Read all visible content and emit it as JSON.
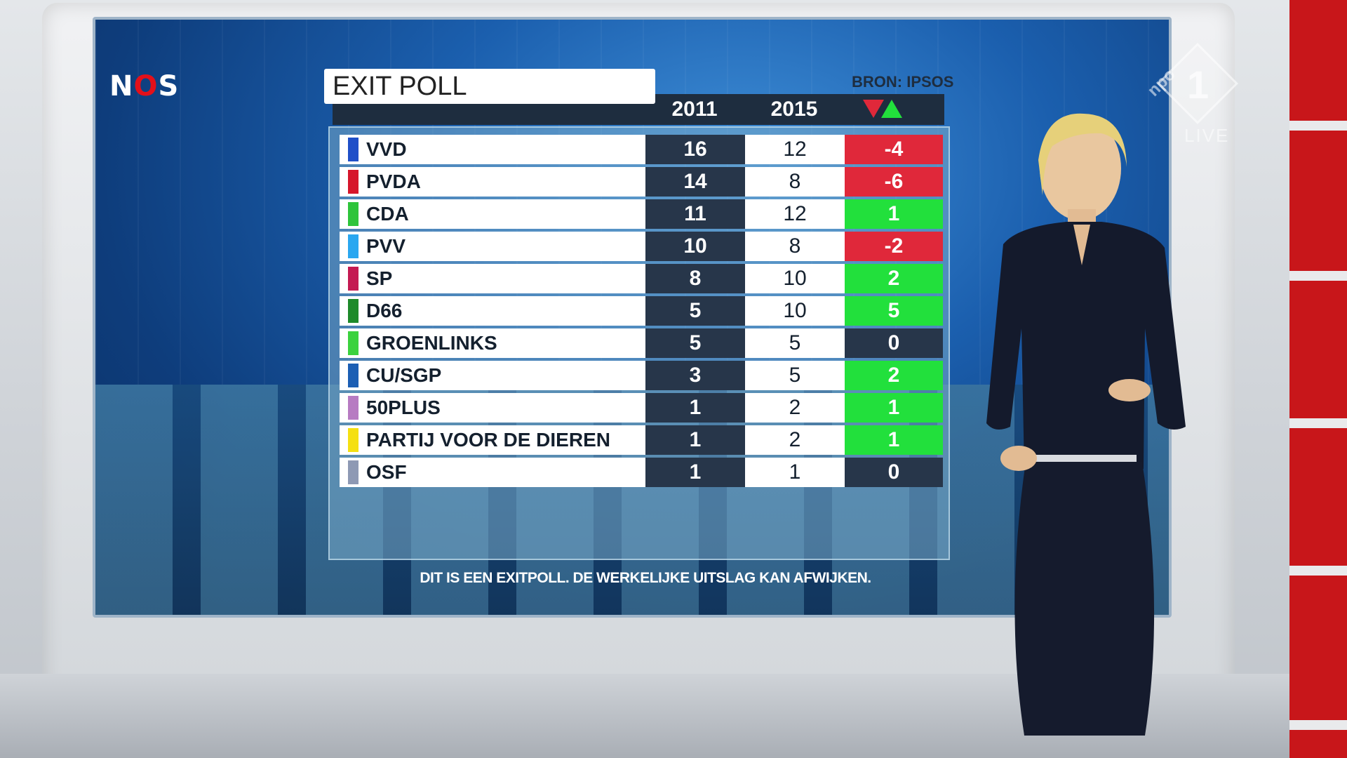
{
  "broadcaster_logo": {
    "text_n": "N",
    "text_o": "O",
    "text_s": "S"
  },
  "channel_bug": {
    "brand": "npo",
    "number": "1",
    "status": "LIVE"
  },
  "graphic": {
    "title": "EXIT POLL",
    "source": "BRON: IPSOS",
    "columns": {
      "year_prev": "2011",
      "year_new": "2015"
    },
    "disclaimer": "DIT IS EEN EXITPOLL. DE WERKELIJKE UITSLAG KAN AFWIJKEN.",
    "colors": {
      "negative": "#e0283a",
      "positive": "#22e03c",
      "neutral": "#27364a"
    }
  },
  "table": {
    "rows": [
      {
        "party": "VVD",
        "color": "#1f4fc8",
        "v2011": "16",
        "v2015": "12",
        "diff": "-4",
        "trend": "down"
      },
      {
        "party": "PVDA",
        "color": "#d6162b",
        "v2011": "14",
        "v2015": "8",
        "diff": "-6",
        "trend": "down"
      },
      {
        "party": "CDA",
        "color": "#2ec43b",
        "v2011": "11",
        "v2015": "12",
        "diff": "1",
        "trend": "up"
      },
      {
        "party": "PVV",
        "color": "#2aa7f0",
        "v2011": "10",
        "v2015": "8",
        "diff": "-2",
        "trend": "down"
      },
      {
        "party": "SP",
        "color": "#c41a52",
        "v2011": "8",
        "v2015": "10",
        "diff": "2",
        "trend": "up"
      },
      {
        "party": "D66",
        "color": "#1e8a2a",
        "v2011": "5",
        "v2015": "10",
        "diff": "5",
        "trend": "up"
      },
      {
        "party": "GROENLINKS",
        "color": "#3bd23e",
        "v2011": "5",
        "v2015": "5",
        "diff": "0",
        "trend": "same"
      },
      {
        "party": "CU/SGP",
        "color": "#1c5fb4",
        "v2011": "3",
        "v2015": "5",
        "diff": "2",
        "trend": "up"
      },
      {
        "party": "50PLUS",
        "color": "#b77bc2",
        "v2011": "1",
        "v2015": "2",
        "diff": "1",
        "trend": "up"
      },
      {
        "party": "PARTIJ VOOR DE DIEREN",
        "color": "#f5e012",
        "v2011": "1",
        "v2015": "2",
        "diff": "1",
        "trend": "up"
      },
      {
        "party": "OSF",
        "color": "#8e99b4",
        "v2011": "1",
        "v2015": "1",
        "diff": "0",
        "trend": "same"
      }
    ]
  }
}
